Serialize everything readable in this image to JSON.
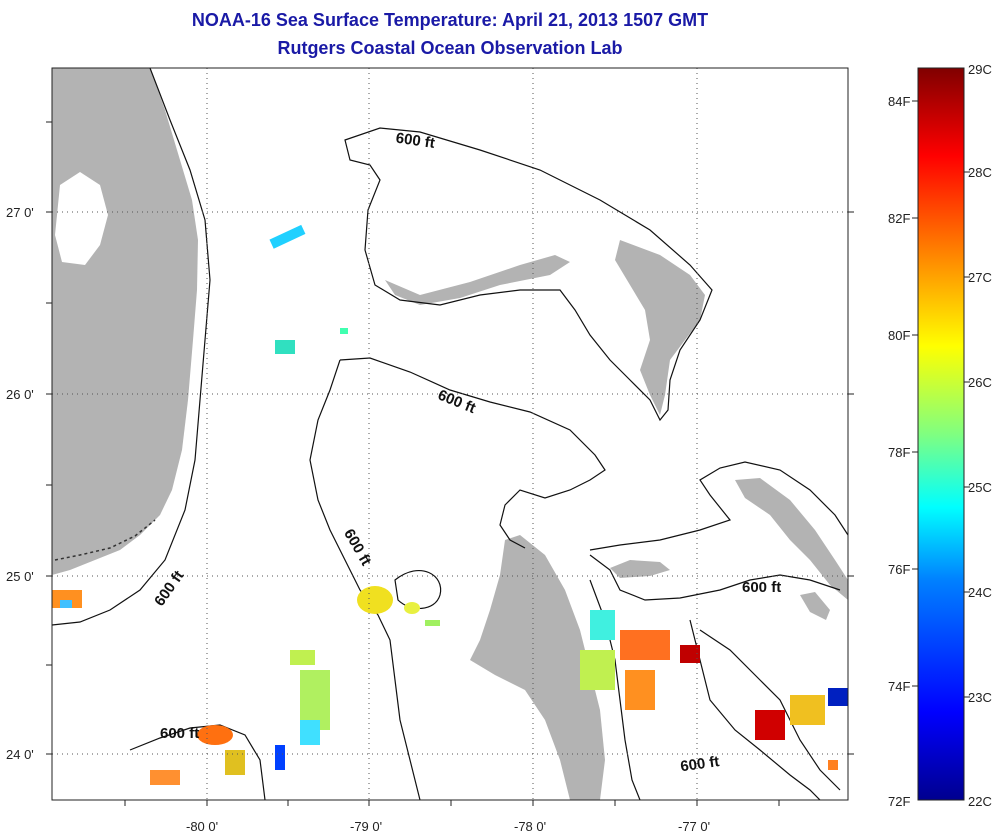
{
  "header": {
    "title": "NOAA-16 Sea Surface Temperature:  April 21, 2013 1507 GMT",
    "subtitle": "Rutgers Coastal Ocean Observation Lab"
  },
  "map": {
    "x_ticks": [
      "-80 0'",
      "-79 0'",
      "-78 0'",
      "-77 0'"
    ],
    "y_ticks": [
      "27 0'",
      "26 0'",
      "25 0'",
      "24 0'"
    ],
    "contour_label": "600 ft",
    "land_color": "#b3b3b3",
    "water_color": "#ffffff"
  },
  "colorbar": {
    "celsius_labels": [
      "29C",
      "28C",
      "27C",
      "26C",
      "25C",
      "24C",
      "23C",
      "22C"
    ],
    "fahrenheit_labels": [
      "84F",
      "82F",
      "80F",
      "78F",
      "76F",
      "74F",
      "72F"
    ],
    "colors": [
      "#00008f",
      "#0000ff",
      "#0080ff",
      "#00ffff",
      "#80ff80",
      "#ffff00",
      "#ff8000",
      "#ff0000",
      "#800000"
    ]
  }
}
